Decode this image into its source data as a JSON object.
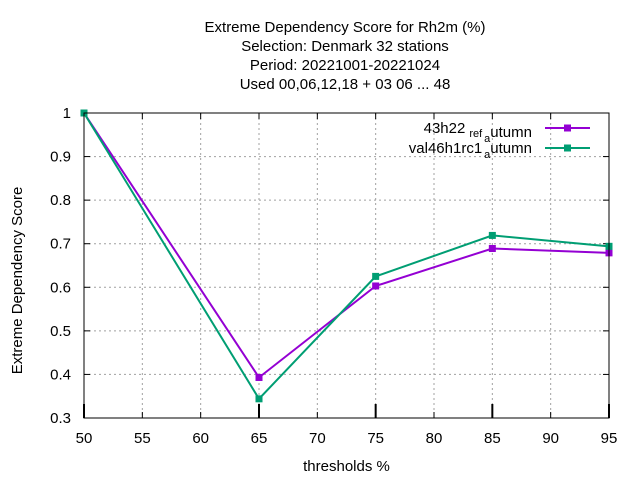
{
  "chart_data": {
    "type": "line",
    "title_lines": [
      "Extreme Dependency Score  for Rh2m (%)",
      "Selection: Denmark     32 stations",
      "Period: 20221001-20221024",
      "Used  00,06,12,18  + 03 06 ... 48"
    ],
    "xlabel": "thresholds %",
    "ylabel": "Extreme Dependency Score",
    "xlim": [
      50,
      95
    ],
    "ylim": [
      0.3,
      1.0
    ],
    "xticks": [
      50,
      55,
      60,
      65,
      70,
      75,
      80,
      85,
      90,
      95
    ],
    "yticks": [
      0.3,
      0.4,
      0.5,
      0.6,
      0.7,
      0.8,
      0.9,
      1.0
    ],
    "ytick_labels": [
      "0.3",
      "0.4",
      "0.5",
      "0.6",
      "0.7",
      "0.8",
      "0.9",
      "1"
    ],
    "grid": true,
    "legend_position": "top-right",
    "x": [
      50,
      65,
      75,
      85,
      95
    ],
    "series": [
      {
        "name": "43h22_ref_autumn",
        "legend_parts": [
          "43h22",
          "ref",
          "a",
          "utumn"
        ],
        "color": "#9400d3",
        "marker": "square",
        "values": [
          1.0,
          0.393,
          0.603,
          0.689,
          0.679
        ]
      },
      {
        "name": "val46h1rc1_autumn",
        "legend_parts": [
          "val46h1rc1",
          "",
          "a",
          "utumn"
        ],
        "color": "#009e73",
        "marker": "square",
        "values": [
          1.0,
          0.344,
          0.625,
          0.719,
          0.694
        ]
      }
    ]
  }
}
